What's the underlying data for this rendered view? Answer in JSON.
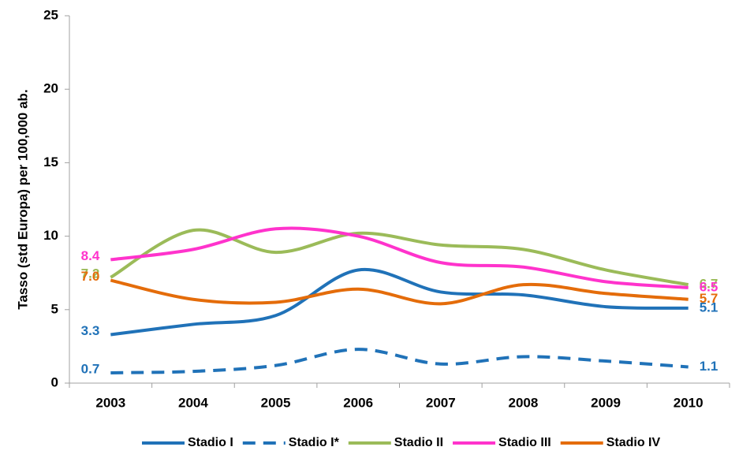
{
  "chart_data": {
    "type": "line",
    "y_label": "Tasso (std Europa) per 100,000 ab.",
    "categories": [
      "2003",
      "2004",
      "2005",
      "2006",
      "2007",
      "2008",
      "2009",
      "2010"
    ],
    "ylim": [
      0,
      25
    ],
    "yticks": [
      0,
      5,
      10,
      15,
      20,
      25
    ],
    "grid": false,
    "smooth": true,
    "legend": "bottom",
    "series": [
      {
        "name": "Stadio I",
        "color": "#2072b8",
        "dashed": false,
        "values": [
          3.3,
          4.0,
          4.6,
          7.7,
          6.2,
          6.0,
          5.2,
          5.1
        ],
        "value_labels": [
          "3.3",
          null,
          null,
          null,
          null,
          null,
          null,
          "5.1"
        ]
      },
      {
        "name": "Stadio I*",
        "color": "#2072b8",
        "dashed": true,
        "values": [
          0.7,
          0.8,
          1.2,
          2.3,
          1.3,
          1.8,
          1.5,
          1.1
        ],
        "value_labels": [
          "0.7",
          null,
          null,
          null,
          null,
          null,
          null,
          "1.1"
        ]
      },
      {
        "name": "Stadio II",
        "color": "#9bbb59",
        "dashed": false,
        "values": [
          7.2,
          10.4,
          8.9,
          10.2,
          9.4,
          9.1,
          7.7,
          6.7
        ],
        "value_labels": [
          "7.2",
          null,
          null,
          null,
          null,
          null,
          null,
          "6.7"
        ]
      },
      {
        "name": "Stadio III",
        "color": "#ff33cc",
        "dashed": false,
        "values": [
          8.4,
          9.1,
          10.5,
          10.0,
          8.2,
          7.9,
          6.9,
          6.5
        ],
        "value_labels": [
          "8.4",
          null,
          null,
          null,
          null,
          null,
          null,
          "6.5"
        ]
      },
      {
        "name": "Stadio IV",
        "color": "#e46c0a",
        "dashed": false,
        "values": [
          7.0,
          5.7,
          5.5,
          6.4,
          5.4,
          6.7,
          6.1,
          5.7
        ],
        "value_labels": [
          "7.0",
          null,
          null,
          null,
          null,
          null,
          null,
          "5.7"
        ]
      }
    ]
  }
}
